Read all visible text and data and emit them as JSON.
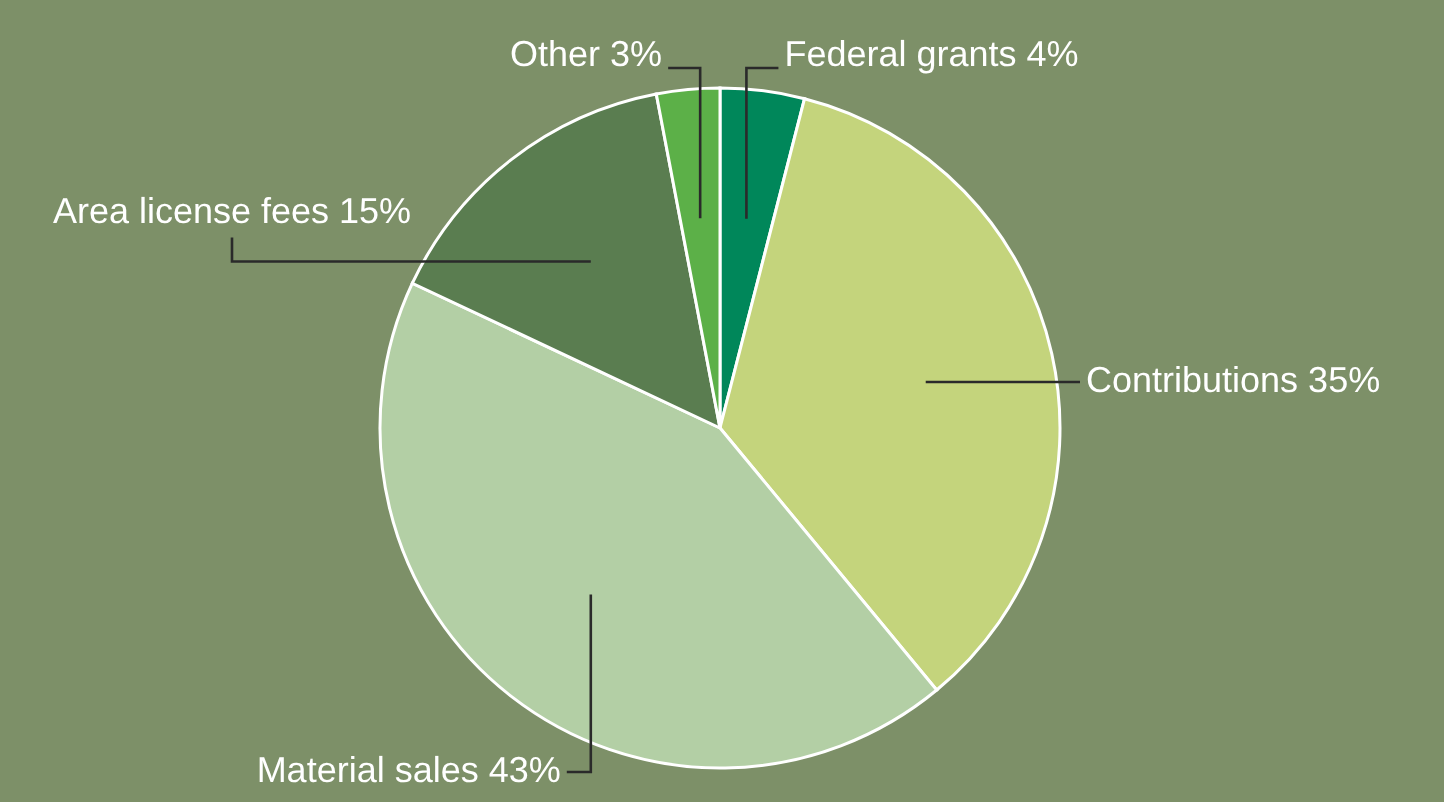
{
  "chart_data": {
    "type": "pie",
    "categories": [
      "Federal grants",
      "Contributions",
      "Material sales",
      "Area license fees",
      "Other"
    ],
    "values": [
      4,
      35,
      43,
      15,
      3
    ],
    "value_labels": [
      "4%",
      "35%",
      "43%",
      "15%",
      "3%"
    ],
    "colors": [
      "#00875a",
      "#c4d47c",
      "#b3cfa5",
      "#5a7d50",
      "#5cb048"
    ]
  }
}
